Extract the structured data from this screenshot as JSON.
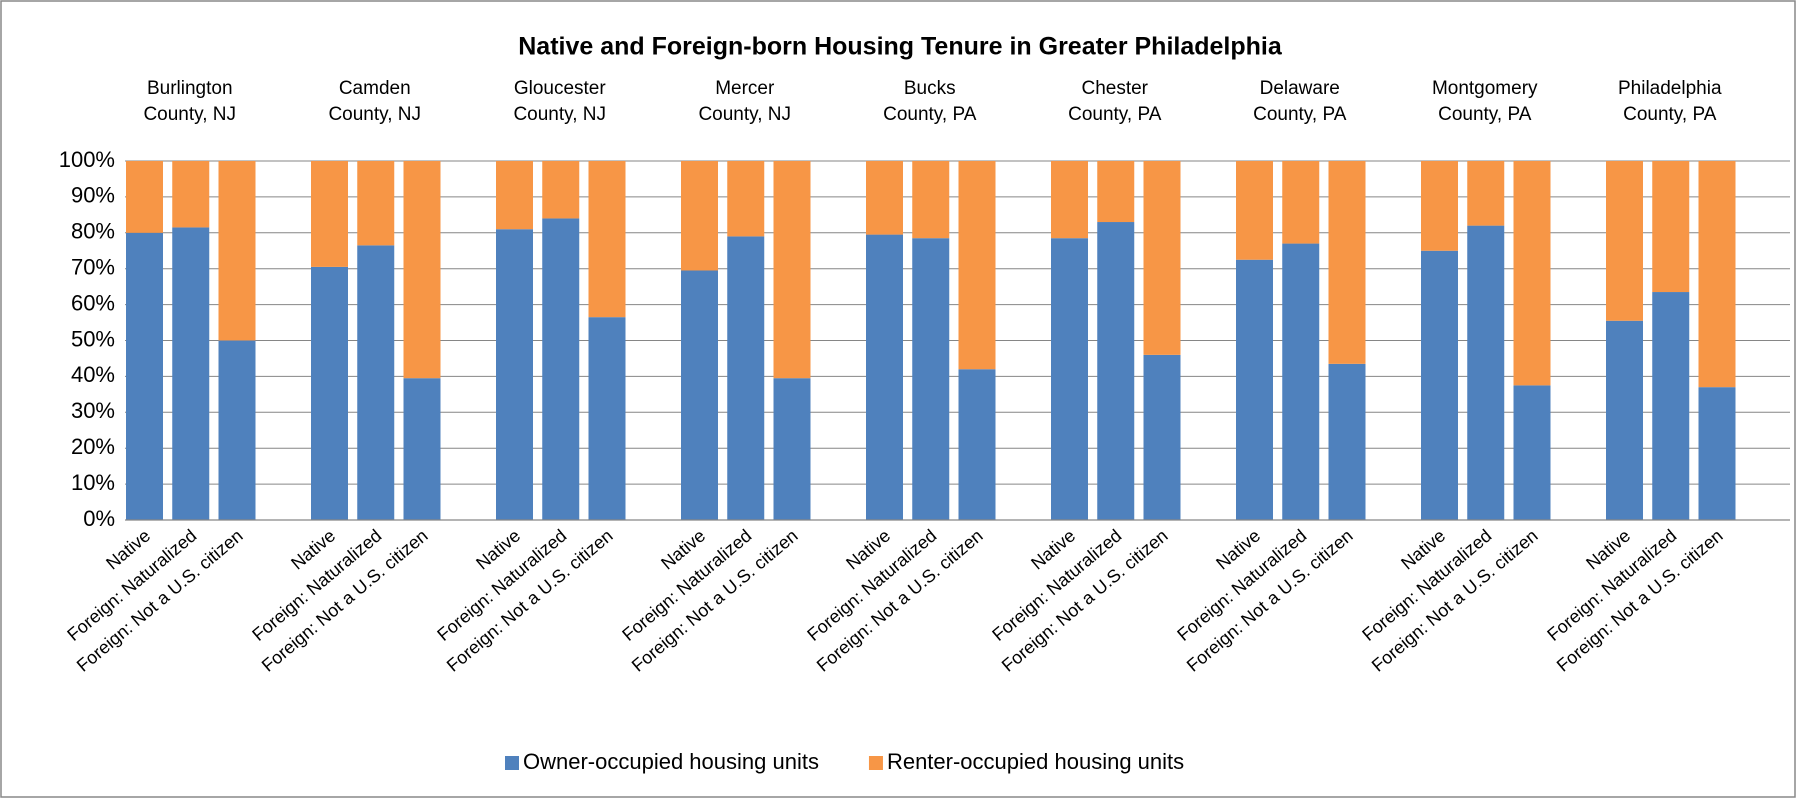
{
  "chart_data": {
    "type": "stacked_bar",
    "title": "Native and Foreign-born Housing Tenure in Greater Philadelphia",
    "groups": [
      [
        "Burlington",
        "County, NJ"
      ],
      [
        "Camden",
        "County, NJ"
      ],
      [
        "Gloucester",
        "County, NJ"
      ],
      [
        "Mercer",
        "County, NJ"
      ],
      [
        "Bucks",
        "County, PA"
      ],
      [
        "Chester",
        "County, PA"
      ],
      [
        "Delaware",
        "County, PA"
      ],
      [
        "Montgomery",
        "County, PA"
      ],
      [
        "Philadelphia",
        "County, PA"
      ]
    ],
    "categories": [
      "Native",
      "Foreign: Naturalized",
      "Foreign: Not a U.S. citizen",
      "Native",
      "Foreign: Naturalized",
      "Foreign: Not a U.S. citizen",
      "Native",
      "Foreign: Naturalized",
      "Foreign: Not a U.S. citizen",
      "Native",
      "Foreign: Naturalized",
      "Foreign: Not a U.S. citizen",
      "Native",
      "Foreign: Naturalized",
      "Foreign: Not a U.S. citizen",
      "Native",
      "Foreign: Naturalized",
      "Foreign: Not a U.S. citizen",
      "Native",
      "Foreign: Naturalized",
      "Foreign: Not a U.S. citizen",
      "Native",
      "Foreign: Naturalized",
      "Foreign: Not a U.S. citizen",
      "Native",
      "Foreign: Naturalized",
      "Foreign: Not a U.S. citizen"
    ],
    "series": [
      {
        "name": "Owner-occupied housing units",
        "color": "#4f81bd",
        "values": [
          80,
          81.5,
          50,
          70.5,
          76.5,
          39.5,
          81,
          84,
          56.5,
          69.5,
          79,
          39.5,
          79.5,
          78.5,
          42,
          78.5,
          83,
          46,
          72.5,
          77,
          43.5,
          75,
          82,
          37.5,
          55.5,
          63.5,
          37
        ]
      },
      {
        "name": "Renter-occupied housing units",
        "color": "#f79646",
        "values": [
          20,
          18.5,
          50,
          29.5,
          23.5,
          60.5,
          19,
          16,
          43.5,
          30.5,
          21,
          60.5,
          20.5,
          21.5,
          58,
          21.5,
          17,
          54,
          27.5,
          23,
          56.5,
          25,
          18,
          62.5,
          44.5,
          36.5,
          63
        ]
      }
    ],
    "ylim": [
      0,
      100
    ],
    "yticks": [
      {
        "value": 0,
        "label": "0%"
      },
      {
        "value": 10,
        "label": "10%"
      },
      {
        "value": 20,
        "label": "20%"
      },
      {
        "value": 30,
        "label": "30%"
      },
      {
        "value": 40,
        "label": "40%"
      },
      {
        "value": 50,
        "label": "50%"
      },
      {
        "value": 60,
        "label": "60%"
      },
      {
        "value": 70,
        "label": "70%"
      },
      {
        "value": 80,
        "label": "80%"
      },
      {
        "value": 90,
        "label": "90%"
      },
      {
        "value": 100,
        "label": "100%"
      }
    ],
    "grid": true,
    "legend": "bottom"
  }
}
